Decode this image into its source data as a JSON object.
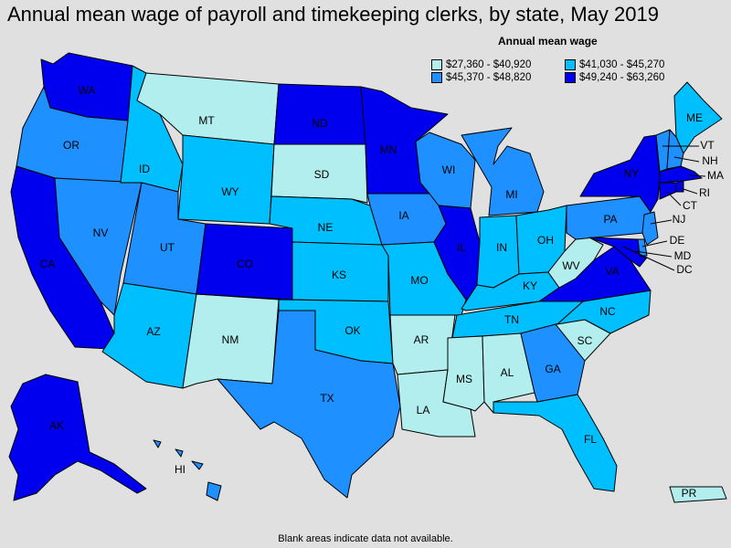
{
  "title": "Annual mean wage of payroll and timekeeping clerks, by state, May 2019",
  "legend": {
    "title": "Annual mean wage",
    "items": [
      {
        "key": "c1",
        "label": "$27,360 - $40,920",
        "color": "#b2eeee"
      },
      {
        "key": "c2",
        "label": "$41,030 - $45,270",
        "color": "#00bfff"
      },
      {
        "key": "c3",
        "label": "$45,370 - $48,820",
        "color": "#1e90ff"
      },
      {
        "key": "c4",
        "label": "$49,240 - $63,260",
        "color": "#0000ee"
      }
    ]
  },
  "footnote": "Blank areas indicate data not available.",
  "states": {
    "WA": "c4",
    "OR": "c3",
    "CA": "c4",
    "NV": "c3",
    "ID": "c2",
    "MT": "c1",
    "WY": "c2",
    "UT": "c3",
    "AZ": "c2",
    "NM": "c1",
    "CO": "c4",
    "ND": "c4",
    "SD": "c1",
    "NE": "c2",
    "KS": "c2",
    "OK": "c2",
    "TX": "c3",
    "MN": "c4",
    "IA": "c3",
    "MO": "c2",
    "AR": "c1",
    "LA": "c1",
    "WI": "c3",
    "IL": "c4",
    "MI": "c3",
    "IN": "c2",
    "OH": "c2",
    "KY": "c2",
    "TN": "c2",
    "MS": "c1",
    "AL": "c1",
    "GA": "c3",
    "FL": "c2",
    "SC": "c1",
    "NC": "c2",
    "VA": "c4",
    "WV": "c1",
    "PA": "c3",
    "NY": "c4",
    "ME": "c2",
    "VT": "c3",
    "NH": "c3",
    "MA": "c4",
    "RI": "c4",
    "CT": "c4",
    "NJ": "c3",
    "DE": "c3",
    "MD": "c4",
    "DC": "c4",
    "AK": "c4",
    "HI": "c3",
    "PR": "c1"
  },
  "labels": {
    "WA": "WA",
    "OR": "OR",
    "CA": "CA",
    "NV": "NV",
    "ID": "ID",
    "MT": "MT",
    "WY": "WY",
    "UT": "UT",
    "AZ": "AZ",
    "NM": "NM",
    "CO": "CO",
    "ND": "ND",
    "SD": "SD",
    "NE": "NE",
    "KS": "KS",
    "OK": "OK",
    "TX": "TX",
    "MN": "MN",
    "IA": "IA",
    "MO": "MO",
    "AR": "AR",
    "LA": "LA",
    "WI": "WI",
    "IL": "IL",
    "MI": "MI",
    "IN": "IN",
    "OH": "OH",
    "KY": "KY",
    "TN": "TN",
    "MS": "MS",
    "AL": "AL",
    "GA": "GA",
    "FL": "FL",
    "SC": "SC",
    "NC": "NC",
    "VA": "VA",
    "WV": "WV",
    "PA": "PA",
    "NY": "NY",
    "ME": "ME",
    "VT": "VT",
    "NH": "NH",
    "MA": "MA",
    "RI": "RI",
    "CT": "CT",
    "NJ": "NJ",
    "DE": "DE",
    "MD": "MD",
    "DC": "DC",
    "AK": "AK",
    "HI": "HI",
    "PR": "PR"
  }
}
